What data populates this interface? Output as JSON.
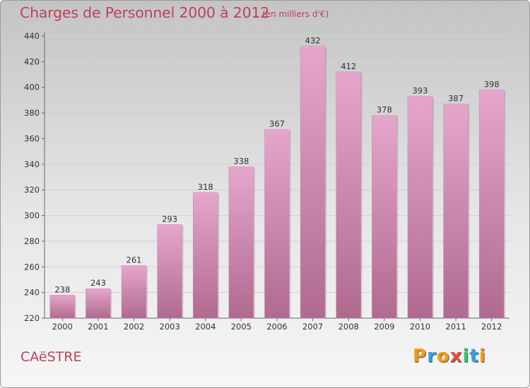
{
  "title": "Charges de Personnel 2000 à 2012",
  "subtitle": "(en milliers d'€)",
  "commune": "CAëSTRE",
  "logo": {
    "letters": [
      "P",
      "r",
      "o",
      "x",
      "i",
      "t",
      "i"
    ],
    "colors": [
      "#f39c12",
      "#3aa0e0",
      "#f39c12",
      "#e74c3c",
      "#2ecc71",
      "#3aa0e0",
      "#f39c12"
    ]
  },
  "chart_data": {
    "type": "bar",
    "title": "Charges de Personnel 2000 à 2012",
    "subtitle": "(en milliers d'€)",
    "categories": [
      "2000",
      "2001",
      "2002",
      "2003",
      "2004",
      "2005",
      "2006",
      "2007",
      "2008",
      "2009",
      "2010",
      "2011",
      "2012"
    ],
    "values": [
      238,
      243,
      261,
      293,
      318,
      338,
      367,
      432,
      412,
      378,
      393,
      387,
      398
    ],
    "ylim": [
      220,
      440
    ],
    "yticks": [
      220,
      240,
      260,
      280,
      300,
      320,
      340,
      360,
      380,
      400,
      420,
      440
    ],
    "grid": true,
    "bar_color": "#d88fb8"
  }
}
